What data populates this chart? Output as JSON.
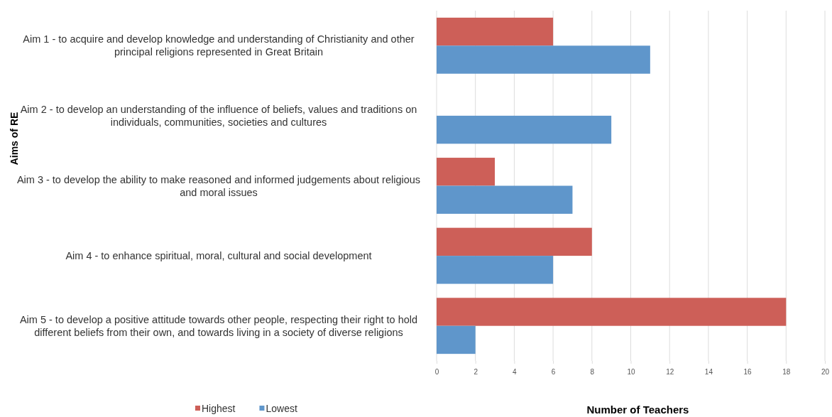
{
  "chart_data": {
    "type": "bar",
    "orientation": "horizontal",
    "xlabel": "Number of Teachers",
    "ylabel": "Aims of RE",
    "categories": [
      "Aim 1 - to acquire and develop knowledge and understanding of Christianity and other principal religions represented in Great Britain",
      "Aim 2 - to develop an understanding of the influence of beliefs, values and traditions on individuals, communities, societies and cultures",
      "Aim 3 - to develop the ability to make reasoned and informed judgements about religious and moral issues",
      "Aim 4 - to enhance spiritual, moral, cultural and social development",
      "Aim 5 - to develop a positive attitude towards other people, respecting their right to hold different beliefs from their own, and towards living in a society of diverse religions"
    ],
    "series": [
      {
        "name": "Highest",
        "color": "#cd5f58",
        "values": [
          6,
          0,
          3,
          8,
          18
        ]
      },
      {
        "name": "Lowest",
        "color": "#5f96cb",
        "values": [
          11,
          9,
          7,
          6,
          2
        ]
      }
    ],
    "xlim": [
      0,
      20
    ],
    "xticks": [
      0,
      2,
      4,
      6,
      8,
      10,
      12,
      14,
      16,
      18,
      20
    ],
    "grid": "x",
    "legend": "bottom left"
  }
}
